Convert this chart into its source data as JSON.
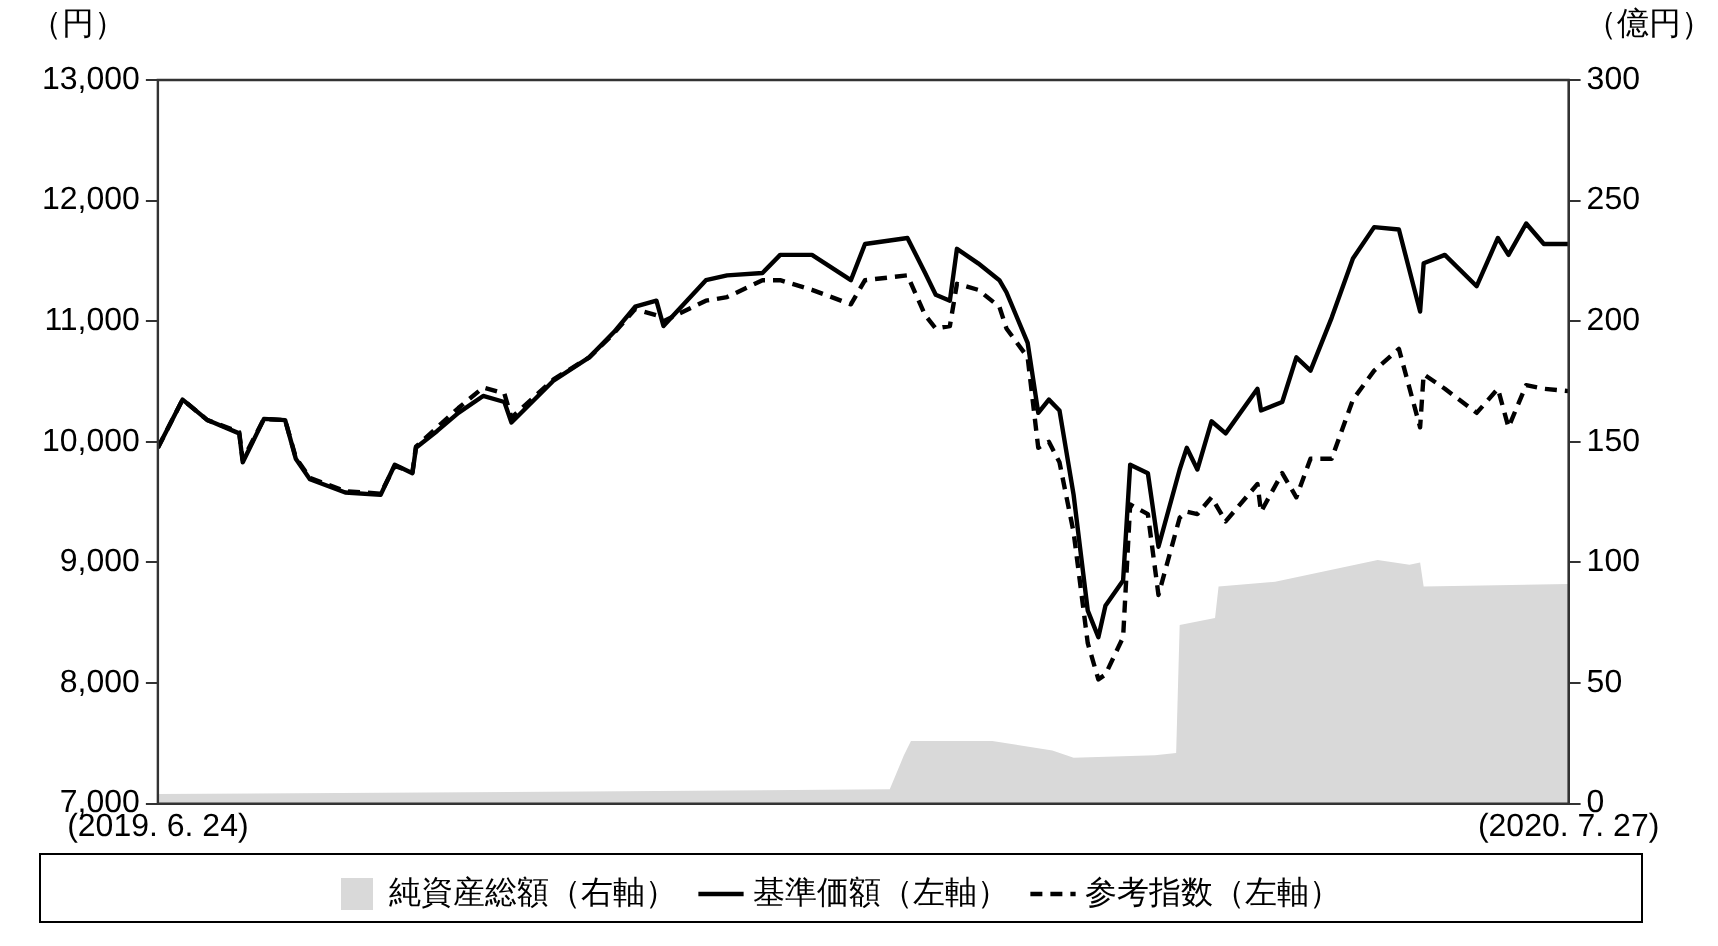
{
  "chart_data": {
    "type": "line",
    "ylabel": "（円）",
    "y2label": "（億円）",
    "xlim": [
      "2019-06-24",
      "2020-07-27"
    ],
    "xticks": [
      {
        "value": "2019-06-24",
        "label": "(2019. 6. 24)"
      },
      {
        "value": "2020-07-27",
        "label": "(2020. 7. 27)"
      }
    ],
    "ylim": [
      7000,
      13000
    ],
    "yticks": [
      {
        "value": 7000,
        "label": "7,000"
      },
      {
        "value": 8000,
        "label": "8,000"
      },
      {
        "value": 9000,
        "label": "9,000"
      },
      {
        "value": 10000,
        "label": "10,000"
      },
      {
        "value": 11000,
        "label": "11,000"
      },
      {
        "value": 12000,
        "label": "12,000"
      },
      {
        "value": 13000,
        "label": "13,000"
      }
    ],
    "y2lim": [
      0,
      300
    ],
    "y2ticks": [
      0,
      50,
      100,
      150,
      200,
      250,
      300
    ],
    "grid": false,
    "legend": "bottom",
    "marker": "none",
    "series": [
      {
        "name": "純資産総額（右軸）",
        "type": "area",
        "axis": "y2",
        "color": "#d9d9d9",
        "x": [
          "2019-06-24",
          "2019-10-23",
          "2020-01-17",
          "2020-01-21",
          "2020-01-23",
          "2020-02-15",
          "2020-03-03",
          "2020-03-09",
          "2020-04-01",
          "2020-04-07",
          "2020-04-08",
          "2020-04-18",
          "2020-04-19",
          "2020-05-05",
          "2020-06-03",
          "2020-06-12",
          "2020-06-15",
          "2020-06-16",
          "2020-07-27"
        ],
        "values": [
          4,
          5,
          6,
          20,
          26,
          26,
          22,
          19,
          20,
          21,
          74,
          77,
          90,
          92,
          101,
          99,
          100,
          90,
          91
        ]
      },
      {
        "name": "基準価額（左軸）",
        "type": "line",
        "line_style": "solid",
        "color": "#000000",
        "x": [
          "2019-06-24",
          "2019-07-01",
          "2019-07-08",
          "2019-07-17",
          "2019-07-18",
          "2019-07-24",
          "2019-07-30",
          "2019-08-02",
          "2019-08-06",
          "2019-08-16",
          "2019-08-26",
          "2019-08-30",
          "2019-09-04",
          "2019-09-05",
          "2019-09-11",
          "2019-09-17",
          "2019-09-24",
          "2019-09-30",
          "2019-10-02",
          "2019-10-14",
          "2019-10-24",
          "2019-10-31",
          "2019-11-06",
          "2019-11-12",
          "2019-11-14",
          "2019-11-26",
          "2019-12-02",
          "2019-12-12",
          "2019-12-17",
          "2019-12-26",
          "2020-01-06",
          "2020-01-10",
          "2020-01-22",
          "2020-01-27",
          "2020-01-30",
          "2020-02-03",
          "2020-02-05",
          "2020-02-11",
          "2020-02-17",
          "2020-02-19",
          "2020-02-25",
          "2020-02-28",
          "2020-03-02",
          "2020-03-05",
          "2020-03-09",
          "2020-03-13",
          "2020-03-16",
          "2020-03-18",
          "2020-03-23",
          "2020-03-25",
          "2020-03-30",
          "2020-04-02",
          "2020-04-08",
          "2020-04-10",
          "2020-04-13",
          "2020-04-17",
          "2020-04-21",
          "2020-04-30",
          "2020-05-01",
          "2020-05-07",
          "2020-05-11",
          "2020-05-15",
          "2020-05-21",
          "2020-05-27",
          "2020-06-02",
          "2020-06-09",
          "2020-06-15",
          "2020-06-16",
          "2020-06-22",
          "2020-07-01",
          "2020-07-07",
          "2020-07-10",
          "2020-07-15",
          "2020-07-20",
          "2020-07-27"
        ],
        "values": [
          9950,
          10350,
          10180,
          10070,
          9830,
          10190,
          10180,
          9860,
          9690,
          9580,
          9560,
          9810,
          9740,
          9950,
          10090,
          10240,
          10380,
          10330,
          10160,
          10510,
          10700,
          10910,
          11120,
          11170,
          10960,
          11340,
          11380,
          11400,
          11550,
          11550,
          11340,
          11640,
          11690,
          11400,
          11220,
          11170,
          11600,
          11480,
          11340,
          11240,
          10820,
          10240,
          10350,
          10260,
          9560,
          8600,
          8380,
          8640,
          8850,
          9810,
          9740,
          9130,
          9770,
          9950,
          9770,
          10170,
          10070,
          10440,
          10260,
          10330,
          10700,
          10590,
          11030,
          11520,
          11780,
          11760,
          11080,
          11480,
          11550,
          11290,
          11690,
          11550,
          11810,
          11640,
          11640
        ]
      },
      {
        "name": "参考指数（左軸）",
        "type": "line",
        "line_style": "dashed",
        "color": "#000000",
        "x": [
          "2019-06-24",
          "2019-07-01",
          "2019-07-08",
          "2019-07-17",
          "2019-07-18",
          "2019-07-24",
          "2019-07-30",
          "2019-08-02",
          "2019-08-06",
          "2019-08-16",
          "2019-08-26",
          "2019-08-30",
          "2019-09-04",
          "2019-09-05",
          "2019-09-11",
          "2019-09-17",
          "2019-09-24",
          "2019-09-30",
          "2019-10-02",
          "2019-10-14",
          "2019-10-24",
          "2019-10-31",
          "2019-11-06",
          "2019-11-12",
          "2019-11-14",
          "2019-11-26",
          "2019-12-02",
          "2019-12-12",
          "2019-12-17",
          "2019-12-26",
          "2020-01-06",
          "2020-01-10",
          "2020-01-22",
          "2020-01-27",
          "2020-01-30",
          "2020-02-03",
          "2020-02-05",
          "2020-02-11",
          "2020-02-17",
          "2020-02-19",
          "2020-02-25",
          "2020-02-28",
          "2020-03-02",
          "2020-03-05",
          "2020-03-09",
          "2020-03-13",
          "2020-03-16",
          "2020-03-18",
          "2020-03-23",
          "2020-03-25",
          "2020-03-30",
          "2020-04-02",
          "2020-04-08",
          "2020-04-10",
          "2020-04-13",
          "2020-04-17",
          "2020-04-21",
          "2020-04-30",
          "2020-05-01",
          "2020-05-07",
          "2020-05-11",
          "2020-05-15",
          "2020-05-21",
          "2020-05-27",
          "2020-06-02",
          "2020-06-09",
          "2020-06-15",
          "2020-06-16",
          "2020-06-22",
          "2020-07-01",
          "2020-07-07",
          "2020-07-10",
          "2020-07-15",
          "2020-07-20",
          "2020-07-27"
        ],
        "values": [
          9950,
          10350,
          10180,
          10080,
          9850,
          10190,
          10180,
          9870,
          9700,
          9590,
          9570,
          9800,
          9750,
          9960,
          10120,
          10280,
          10450,
          10400,
          10200,
          10520,
          10700,
          10900,
          11100,
          11050,
          11000,
          11170,
          11200,
          11340,
          11340,
          11260,
          11140,
          11340,
          11380,
          11050,
          10940,
          10960,
          11310,
          11260,
          11120,
          10940,
          10700,
          9950,
          10000,
          9830,
          9250,
          8330,
          8030,
          8070,
          8380,
          9480,
          9400,
          8730,
          9370,
          9420,
          9400,
          9540,
          9340,
          9650,
          9420,
          9740,
          9540,
          9860,
          9860,
          10350,
          10590,
          10770,
          10120,
          10560,
          10440,
          10240,
          10440,
          10120,
          10470,
          10440,
          10420
        ]
      }
    ]
  }
}
